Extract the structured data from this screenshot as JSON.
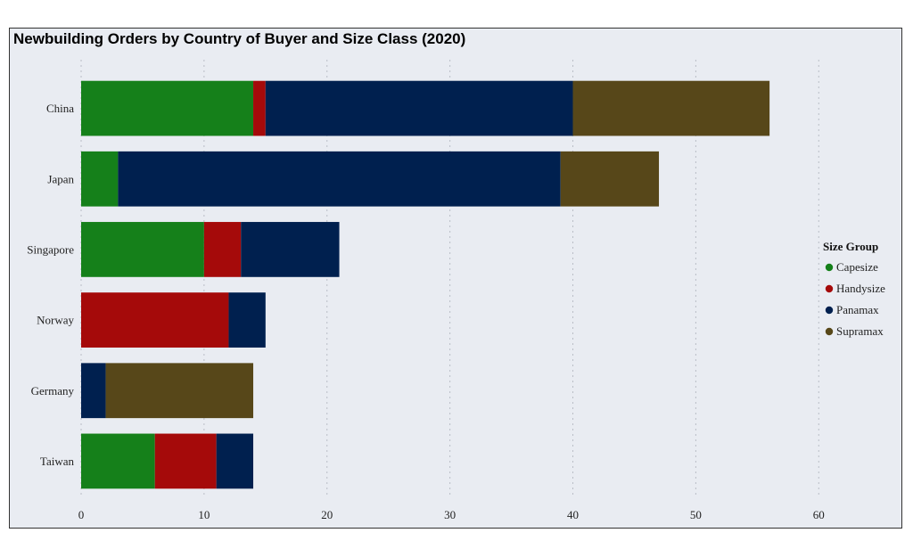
{
  "chart_data": {
    "type": "bar",
    "orientation": "horizontal",
    "stacked": true,
    "title": "Newbuilding Orders by Country of Buyer and Size Class (2020)",
    "xlabel": "",
    "ylabel": "",
    "xlim": [
      0,
      66
    ],
    "xticks": [
      0,
      10,
      20,
      30,
      40,
      50,
      60
    ],
    "grid": true,
    "categories": [
      "China",
      "Japan",
      "Singapore",
      "Norway",
      "Germany",
      "Taiwan"
    ],
    "legend": {
      "title": "Size Group",
      "position": "right"
    },
    "series": [
      {
        "name": "Capesize",
        "color": "#15801a",
        "values": [
          14,
          3,
          10,
          0,
          0,
          6
        ]
      },
      {
        "name": "Handysize",
        "color": "#a50a0a",
        "values": [
          1,
          0,
          3,
          12,
          0,
          5
        ]
      },
      {
        "name": "Panamax",
        "color": "#00204f",
        "values": [
          25,
          36,
          8,
          3,
          2,
          3
        ]
      },
      {
        "name": "Supramax",
        "color": "#574719",
        "values": [
          16,
          8,
          0,
          0,
          12,
          0
        ]
      }
    ]
  }
}
